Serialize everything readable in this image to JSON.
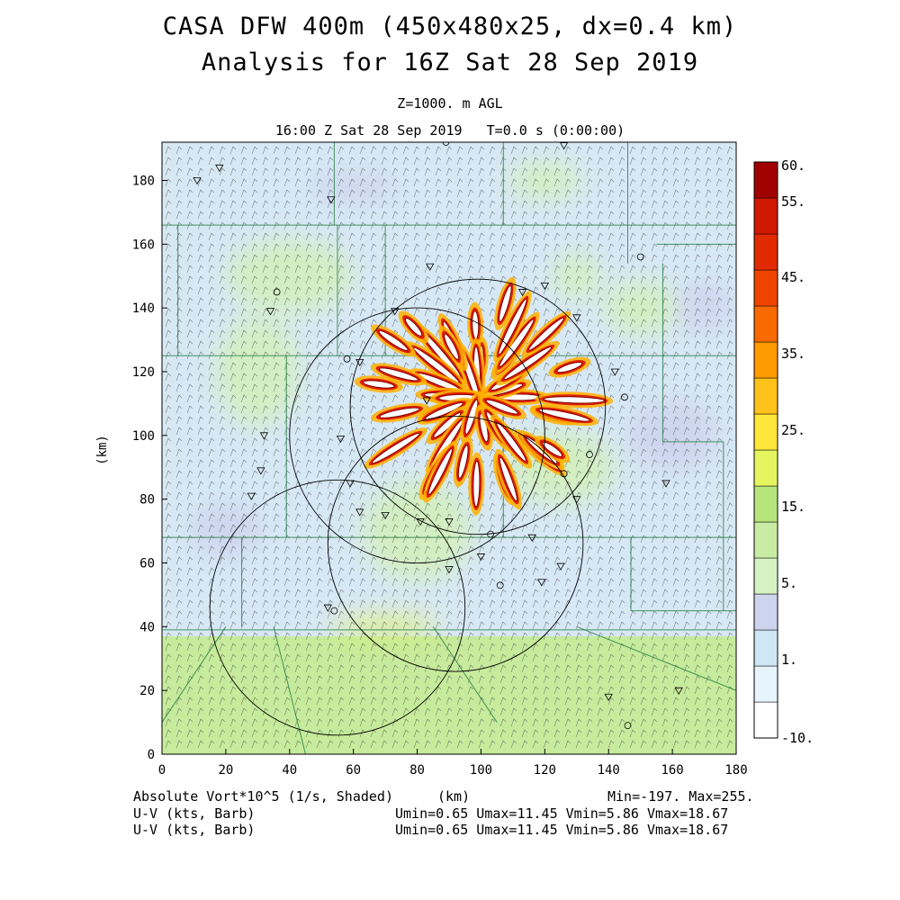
{
  "header": {
    "title_line1": "CASA DFW 400m (450x480x25, dx=0.4 km)",
    "title_line2": "Analysis for 16Z Sat 28 Sep 2019",
    "level": "Z=1000. m AGL",
    "time_line": "16:00 Z Sat 28 Sep 2019   T=0.0 s (0:00:00)"
  },
  "footer": {
    "field_label": "Absolute Vort*10^5 (1/s, Shaded)",
    "x_unit": "(km)",
    "minmax": "Min=-197. Max=255.",
    "barb_label_1": "U-V (kts, Barb)",
    "barb_label_2": "U-V (kts, Barb)",
    "uv_stats_1": "Umin=0.65 Umax=11.45 Vmin=5.86 Vmax=18.67",
    "uv_stats_2": "Umin=0.65 Umax=11.45 Vmin=5.86 Vmax=18.67"
  },
  "chart_data": {
    "type": "heatmap",
    "xlabel": "(km)",
    "ylabel": "(km)",
    "xlim": [
      0,
      180
    ],
    "ylim": [
      0,
      192
    ],
    "x_ticks": [
      0,
      20,
      40,
      60,
      80,
      100,
      120,
      140,
      160,
      180
    ],
    "y_ticks": [
      0,
      20,
      40,
      60,
      80,
      100,
      120,
      140,
      160,
      180
    ],
    "colorbar": {
      "labels": [
        "60.",
        "55.",
        "45.",
        "35.",
        "25.",
        "15.",
        "5.",
        "1.",
        "-10."
      ],
      "colors": [
        "#ffffff",
        "#e6f4fb",
        "#cfe6f4",
        "#cdd4ee",
        "#d6f1c2",
        "#c8eca4",
        "#b7e57c",
        "#e5f560",
        "#ffe63a",
        "#ffc21a",
        "#ff9a00",
        "#f96a00",
        "#ef4400",
        "#e22a00",
        "#d11800",
        "#a00000"
      ]
    },
    "radar_rings": [
      {
        "cx": 99,
        "cy": 109,
        "r": 40
      },
      {
        "cx": 80,
        "cy": 100,
        "r": 40
      },
      {
        "cx": 92,
        "cy": 66,
        "r": 40
      },
      {
        "cx": 55,
        "cy": 46,
        "r": 40
      }
    ],
    "background_colors": {
      "light_blue": "#d7e8f5",
      "lavender": "#cdd4ee",
      "light_green": "#d3efbc",
      "green": "#c6eb9c",
      "yellow_green": "#dcf07a",
      "county_lines": "#1f7a3c"
    }
  }
}
